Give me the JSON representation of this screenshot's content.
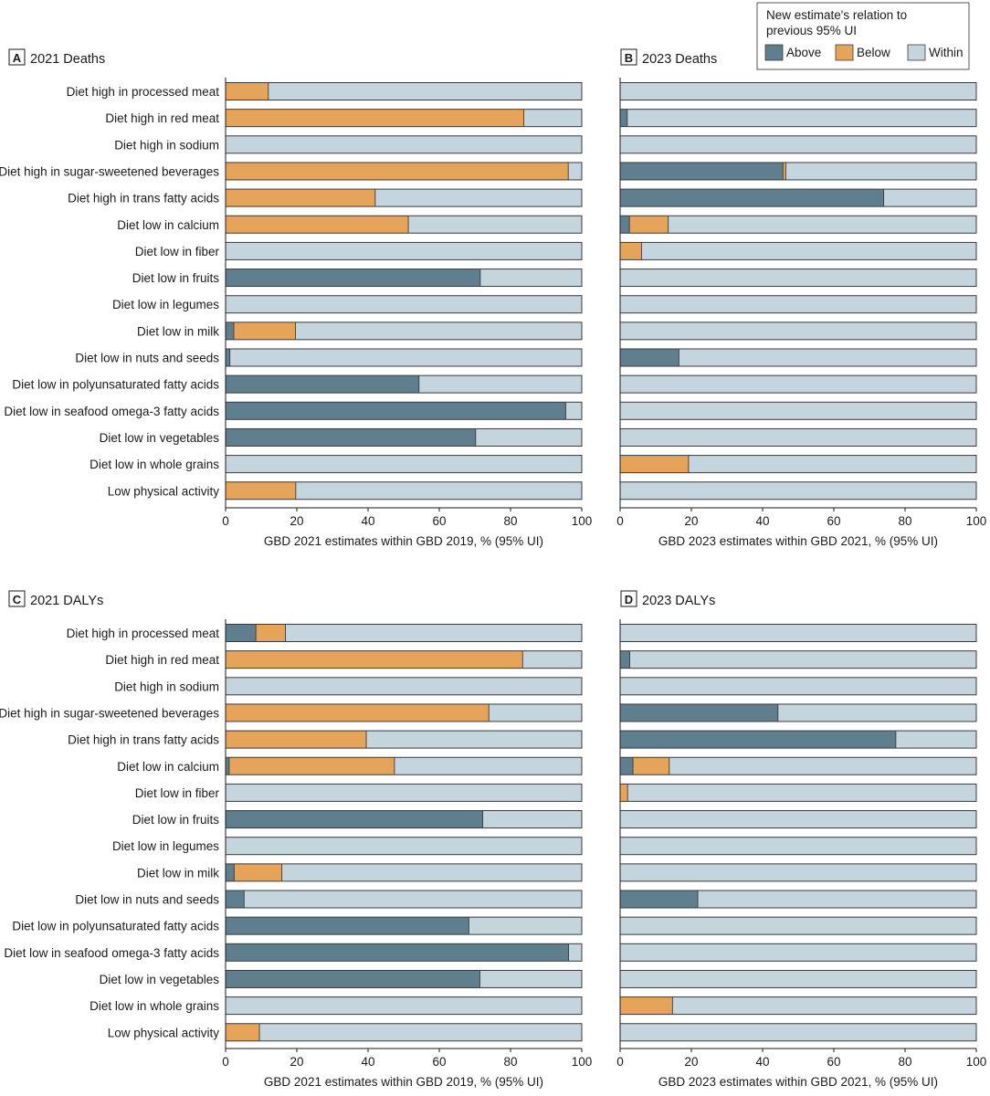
{
  "colors": {
    "above": "#5f7f8f",
    "below": "#e6a45a",
    "within": "#c5d5de",
    "stroke": "#3a3a3a"
  },
  "legend": {
    "title_line1": "New estimate's relation to",
    "title_line2": "previous 95% UI",
    "items": [
      {
        "key": "above",
        "label": "Above"
      },
      {
        "key": "below",
        "label": "Below"
      },
      {
        "key": "within",
        "label": "Within"
      }
    ]
  },
  "chart_data": [
    {
      "type": "bar",
      "stacked": true,
      "orientation": "horizontal",
      "panel": "A",
      "title": "2021 Deaths",
      "xlabel": "GBD 2021 estimates within GBD 2019, % (95% UI)",
      "xlim": [
        0,
        100
      ],
      "xticks": [
        0,
        20,
        40,
        60,
        80,
        100
      ],
      "categories": [
        "Diet high in processed meat",
        "Diet high in red meat",
        "Diet high in sodium",
        "Diet high in sugar-sweetened beverages",
        "Diet high in trans fatty acids",
        "Diet low in calcium",
        "Diet low in fiber",
        "Diet low in fruits",
        "Diet low in legumes",
        "Diet low in milk",
        "Diet low in nuts and seeds",
        "Diet low in polyunsaturated fatty acids",
        "Diet low in seafood omega-3 fatty acids",
        "Diet low in vegetables",
        "Diet low in whole grains",
        "Low physical activity"
      ],
      "series": [
        {
          "name": "Above",
          "values": [
            0,
            0,
            0,
            0,
            0,
            0,
            0,
            71.5,
            0,
            2.3,
            1.2,
            54.3,
            95.5,
            70.2,
            0,
            0
          ]
        },
        {
          "name": "Below",
          "values": [
            12,
            83.7,
            0,
            96.2,
            42,
            51.3,
            0,
            0,
            0,
            17.3,
            0,
            0,
            0,
            0,
            0,
            19.7
          ]
        },
        {
          "name": "Within",
          "values": [
            88,
            16.3,
            100,
            3.8,
            58,
            48.7,
            100,
            28.5,
            100,
            80.4,
            98.8,
            45.7,
            4.5,
            29.8,
            100,
            80.3
          ]
        }
      ]
    },
    {
      "type": "bar",
      "stacked": true,
      "orientation": "horizontal",
      "panel": "B",
      "title": "2023 Deaths",
      "xlabel": "GBD 2023 estimates within GBD 2021, % (95% UI)",
      "xlim": [
        0,
        100
      ],
      "xticks": [
        0,
        20,
        40,
        60,
        80,
        100
      ],
      "categories": [
        "Diet high in processed meat",
        "Diet high in red meat",
        "Diet high in sodium",
        "Diet high in sugar-sweetened beverages",
        "Diet high in trans fatty acids",
        "Diet low in calcium",
        "Diet low in fiber",
        "Diet low in fruits",
        "Diet low in legumes",
        "Diet low in milk",
        "Diet low in nuts and seeds",
        "Diet low in polyunsaturated fatty acids",
        "Diet low in seafood omega-3 fatty acids",
        "Diet low in vegetables",
        "Diet low in whole grains",
        "Low physical activity"
      ],
      "series": [
        {
          "name": "Above",
          "values": [
            0,
            2,
            0,
            45.7,
            74,
            2.6,
            0,
            0,
            0,
            0,
            16.5,
            0,
            0,
            0,
            0,
            0
          ]
        },
        {
          "name": "Below",
          "values": [
            0,
            0,
            0,
            0.8,
            0,
            10.9,
            6,
            0,
            0,
            0,
            0,
            0,
            0,
            0,
            19.2,
            0
          ]
        },
        {
          "name": "Within",
          "values": [
            100,
            98,
            100,
            53.5,
            26,
            86.5,
            94,
            100,
            100,
            100,
            83.5,
            100,
            100,
            100,
            80.8,
            100
          ]
        }
      ]
    },
    {
      "type": "bar",
      "stacked": true,
      "orientation": "horizontal",
      "panel": "C",
      "title": "2021 DALYs",
      "xlabel": "GBD 2021 estimates within GBD 2019, % (95% UI)",
      "xlim": [
        0,
        100
      ],
      "xticks": [
        0,
        20,
        40,
        60,
        80,
        100
      ],
      "categories": [
        "Diet high in processed meat",
        "Diet high in red meat",
        "Diet high in sodium",
        "Diet high in sugar-sweetened beverages",
        "Diet high in trans fatty acids",
        "Diet low in calcium",
        "Diet low in fiber",
        "Diet low in fruits",
        "Diet low in legumes",
        "Diet low in milk",
        "Diet low in nuts and seeds",
        "Diet low in polyunsaturated fatty acids",
        "Diet low in seafood omega-3 fatty acids",
        "Diet low in vegetables",
        "Diet low in whole grains",
        "Low physical activity"
      ],
      "series": [
        {
          "name": "Above",
          "values": [
            8.5,
            0,
            0,
            0,
            0,
            1,
            0,
            72.2,
            0,
            2.4,
            5.2,
            68.3,
            96.3,
            71.4,
            0,
            0
          ]
        },
        {
          "name": "Below",
          "values": [
            8.3,
            83.4,
            0,
            73.9,
            39.5,
            46.4,
            0,
            0,
            0,
            13.4,
            0,
            0,
            0,
            0,
            0,
            9.5
          ]
        },
        {
          "name": "Within",
          "values": [
            83.2,
            16.6,
            100,
            26.1,
            60.5,
            52.6,
            100,
            27.8,
            100,
            84.2,
            94.8,
            31.7,
            3.7,
            28.6,
            100,
            90.5
          ]
        }
      ]
    },
    {
      "type": "bar",
      "stacked": true,
      "orientation": "horizontal",
      "panel": "D",
      "title": "2023 DALYs",
      "xlabel": "GBD 2023 estimates within GBD 2021, % (95% UI)",
      "xlim": [
        0,
        100
      ],
      "xticks": [
        0,
        20,
        40,
        60,
        80,
        100
      ],
      "categories": [
        "Diet high in processed meat",
        "Diet high in red meat",
        "Diet high in sodium",
        "Diet high in sugar-sweetened beverages",
        "Diet high in trans fatty acids",
        "Diet low in calcium",
        "Diet low in fiber",
        "Diet low in fruits",
        "Diet low in legumes",
        "Diet low in milk",
        "Diet low in nuts and seeds",
        "Diet low in polyunsaturated fatty acids",
        "Diet low in seafood omega-3 fatty acids",
        "Diet low in vegetables",
        "Diet low in whole grains",
        "Low physical activity"
      ],
      "series": [
        {
          "name": "Above",
          "values": [
            0,
            2.7,
            0,
            44.3,
            77.4,
            3.6,
            0,
            0,
            0,
            0,
            21.8,
            0,
            0,
            0,
            0,
            0
          ]
        },
        {
          "name": "Below",
          "values": [
            0,
            0,
            0,
            0,
            0,
            10.2,
            2.1,
            0,
            0,
            0,
            0,
            0,
            0,
            0,
            14.7,
            0
          ]
        },
        {
          "name": "Within",
          "values": [
            100,
            97.3,
            100,
            55.7,
            22.6,
            86.2,
            97.9,
            100,
            100,
            100,
            78.2,
            100,
            100,
            100,
            85.3,
            100
          ]
        }
      ]
    }
  ]
}
